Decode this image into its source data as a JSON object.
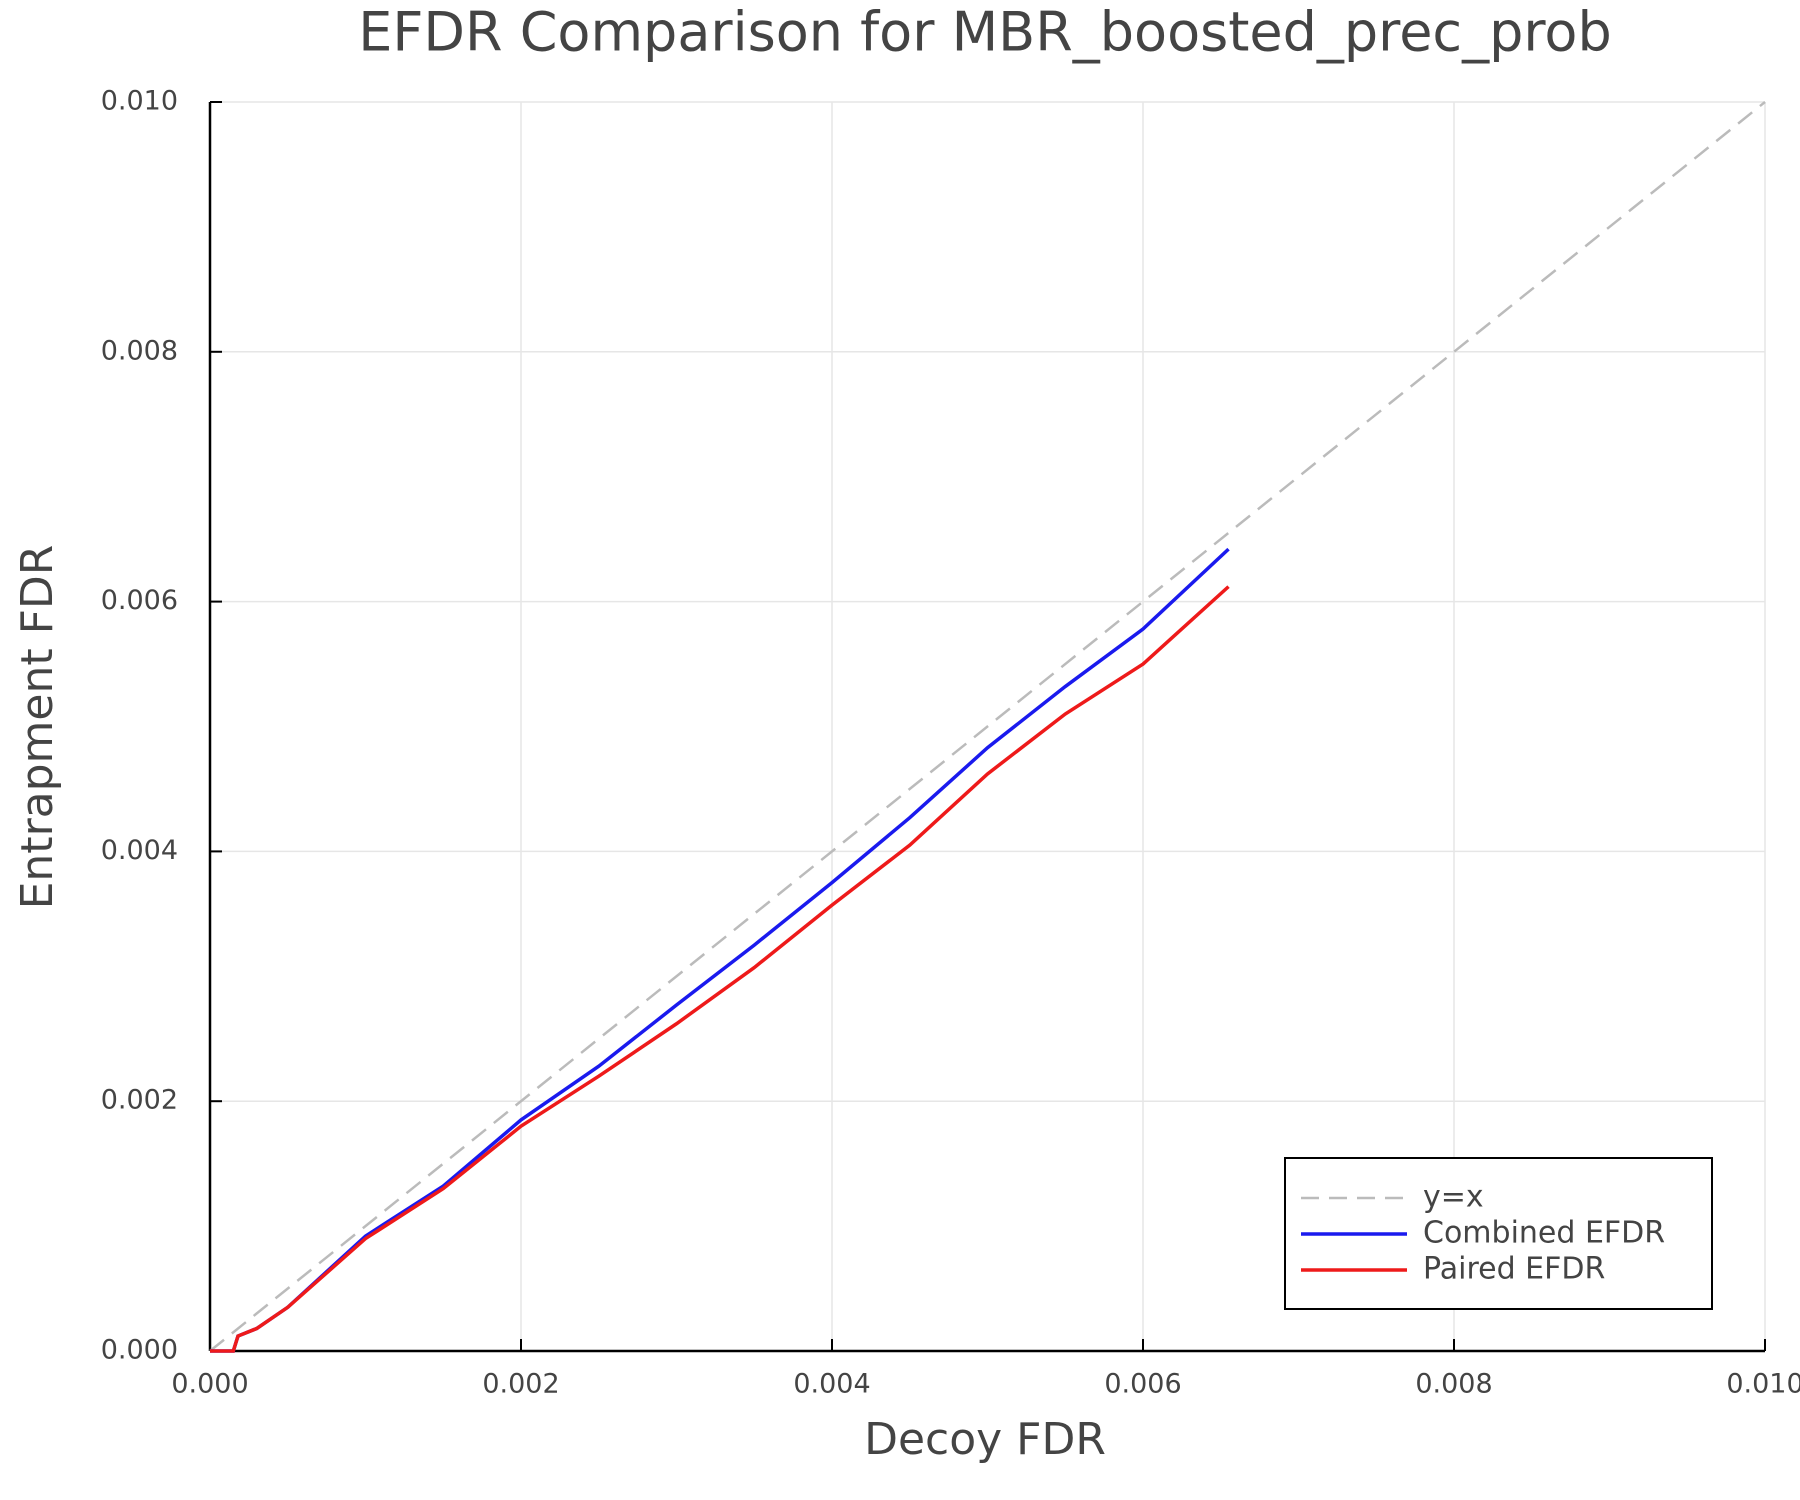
{
  "chart_data": {
    "type": "line",
    "title": "EFDR Comparison for MBR_boosted_prec_prob",
    "xlabel": "Decoy FDR",
    "ylabel": "Entrapment FDR",
    "xlim": [
      0,
      0.01
    ],
    "ylim": [
      0,
      0.01
    ],
    "xticks": [
      {
        "value": 0,
        "label": "0.000"
      },
      0.002,
      0.004,
      0.006,
      0.008,
      {
        "value": 0.01,
        "label": "0.010"
      }
    ],
    "yticks": [
      {
        "value": 0,
        "label": "0.000"
      },
      0.002,
      0.004,
      0.006,
      0.008,
      {
        "value": 0.01,
        "label": "0.010"
      }
    ],
    "grid": true,
    "legend": "lower right",
    "series": [
      {
        "name": "y=x",
        "color": "#bbbbbb",
        "dash": true,
        "x": [
          0,
          0.01
        ],
        "values": [
          0,
          0.01
        ]
      },
      {
        "name": "Combined EFDR",
        "color": "#1a1aee",
        "x": [
          0,
          0.00015,
          0.00018,
          0.0003,
          0.0005,
          0.001,
          0.0015,
          0.002,
          0.0025,
          0.003,
          0.0035,
          0.004,
          0.0045,
          0.005,
          0.0055,
          0.006,
          0.00655
        ],
        "values": [
          0,
          0,
          0.00012,
          0.00018,
          0.00035,
          0.00092,
          0.00132,
          0.00185,
          0.00228,
          0.00277,
          0.00325,
          0.00375,
          0.00427,
          0.00483,
          0.00532,
          0.00578,
          0.00642
        ]
      },
      {
        "name": "Paired EFDR",
        "color": "#ee1a1a",
        "x": [
          0,
          0.00015,
          0.00018,
          0.0003,
          0.0005,
          0.001,
          0.0015,
          0.002,
          0.0025,
          0.003,
          0.0035,
          0.004,
          0.0045,
          0.005,
          0.0055,
          0.006,
          0.00655
        ],
        "values": [
          0,
          0,
          0.00012,
          0.00018,
          0.00035,
          0.0009,
          0.0013,
          0.0018,
          0.0022,
          0.00262,
          0.00307,
          0.00357,
          0.00405,
          0.00462,
          0.0051,
          0.0055,
          0.00612
        ]
      }
    ]
  }
}
